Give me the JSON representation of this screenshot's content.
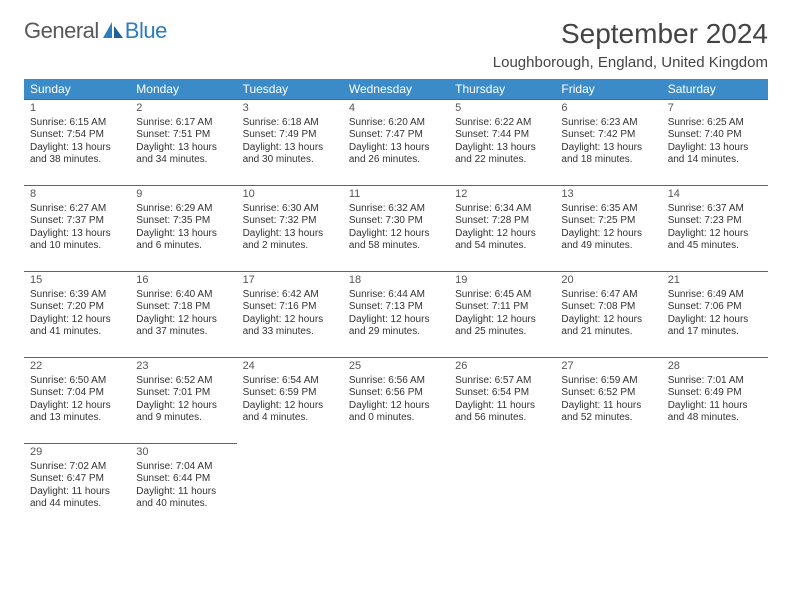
{
  "brand": {
    "word1": "General",
    "word2": "Blue"
  },
  "title": "September 2024",
  "location": "Loughborough, England, United Kingdom",
  "colors": {
    "header_bg": "#3b8bc9",
    "header_text": "#ffffff",
    "rule": "#2f6fa8",
    "brand_gray": "#57585a",
    "brand_blue": "#2f7bbf",
    "body_text": "#333333"
  },
  "weekdays": [
    "Sunday",
    "Monday",
    "Tuesday",
    "Wednesday",
    "Thursday",
    "Friday",
    "Saturday"
  ],
  "weeks": [
    [
      {
        "n": "1",
        "sr": "Sunrise: 6:15 AM",
        "ss": "Sunset: 7:54 PM",
        "d1": "Daylight: 13 hours",
        "d2": "and 38 minutes."
      },
      {
        "n": "2",
        "sr": "Sunrise: 6:17 AM",
        "ss": "Sunset: 7:51 PM",
        "d1": "Daylight: 13 hours",
        "d2": "and 34 minutes."
      },
      {
        "n": "3",
        "sr": "Sunrise: 6:18 AM",
        "ss": "Sunset: 7:49 PM",
        "d1": "Daylight: 13 hours",
        "d2": "and 30 minutes."
      },
      {
        "n": "4",
        "sr": "Sunrise: 6:20 AM",
        "ss": "Sunset: 7:47 PM",
        "d1": "Daylight: 13 hours",
        "d2": "and 26 minutes."
      },
      {
        "n": "5",
        "sr": "Sunrise: 6:22 AM",
        "ss": "Sunset: 7:44 PM",
        "d1": "Daylight: 13 hours",
        "d2": "and 22 minutes."
      },
      {
        "n": "6",
        "sr": "Sunrise: 6:23 AM",
        "ss": "Sunset: 7:42 PM",
        "d1": "Daylight: 13 hours",
        "d2": "and 18 minutes."
      },
      {
        "n": "7",
        "sr": "Sunrise: 6:25 AM",
        "ss": "Sunset: 7:40 PM",
        "d1": "Daylight: 13 hours",
        "d2": "and 14 minutes."
      }
    ],
    [
      {
        "n": "8",
        "sr": "Sunrise: 6:27 AM",
        "ss": "Sunset: 7:37 PM",
        "d1": "Daylight: 13 hours",
        "d2": "and 10 minutes."
      },
      {
        "n": "9",
        "sr": "Sunrise: 6:29 AM",
        "ss": "Sunset: 7:35 PM",
        "d1": "Daylight: 13 hours",
        "d2": "and 6 minutes."
      },
      {
        "n": "10",
        "sr": "Sunrise: 6:30 AM",
        "ss": "Sunset: 7:32 PM",
        "d1": "Daylight: 13 hours",
        "d2": "and 2 minutes."
      },
      {
        "n": "11",
        "sr": "Sunrise: 6:32 AM",
        "ss": "Sunset: 7:30 PM",
        "d1": "Daylight: 12 hours",
        "d2": "and 58 minutes."
      },
      {
        "n": "12",
        "sr": "Sunrise: 6:34 AM",
        "ss": "Sunset: 7:28 PM",
        "d1": "Daylight: 12 hours",
        "d2": "and 54 minutes."
      },
      {
        "n": "13",
        "sr": "Sunrise: 6:35 AM",
        "ss": "Sunset: 7:25 PM",
        "d1": "Daylight: 12 hours",
        "d2": "and 49 minutes."
      },
      {
        "n": "14",
        "sr": "Sunrise: 6:37 AM",
        "ss": "Sunset: 7:23 PM",
        "d1": "Daylight: 12 hours",
        "d2": "and 45 minutes."
      }
    ],
    [
      {
        "n": "15",
        "sr": "Sunrise: 6:39 AM",
        "ss": "Sunset: 7:20 PM",
        "d1": "Daylight: 12 hours",
        "d2": "and 41 minutes."
      },
      {
        "n": "16",
        "sr": "Sunrise: 6:40 AM",
        "ss": "Sunset: 7:18 PM",
        "d1": "Daylight: 12 hours",
        "d2": "and 37 minutes."
      },
      {
        "n": "17",
        "sr": "Sunrise: 6:42 AM",
        "ss": "Sunset: 7:16 PM",
        "d1": "Daylight: 12 hours",
        "d2": "and 33 minutes."
      },
      {
        "n": "18",
        "sr": "Sunrise: 6:44 AM",
        "ss": "Sunset: 7:13 PM",
        "d1": "Daylight: 12 hours",
        "d2": "and 29 minutes."
      },
      {
        "n": "19",
        "sr": "Sunrise: 6:45 AM",
        "ss": "Sunset: 7:11 PM",
        "d1": "Daylight: 12 hours",
        "d2": "and 25 minutes."
      },
      {
        "n": "20",
        "sr": "Sunrise: 6:47 AM",
        "ss": "Sunset: 7:08 PM",
        "d1": "Daylight: 12 hours",
        "d2": "and 21 minutes."
      },
      {
        "n": "21",
        "sr": "Sunrise: 6:49 AM",
        "ss": "Sunset: 7:06 PM",
        "d1": "Daylight: 12 hours",
        "d2": "and 17 minutes."
      }
    ],
    [
      {
        "n": "22",
        "sr": "Sunrise: 6:50 AM",
        "ss": "Sunset: 7:04 PM",
        "d1": "Daylight: 12 hours",
        "d2": "and 13 minutes."
      },
      {
        "n": "23",
        "sr": "Sunrise: 6:52 AM",
        "ss": "Sunset: 7:01 PM",
        "d1": "Daylight: 12 hours",
        "d2": "and 9 minutes."
      },
      {
        "n": "24",
        "sr": "Sunrise: 6:54 AM",
        "ss": "Sunset: 6:59 PM",
        "d1": "Daylight: 12 hours",
        "d2": "and 4 minutes."
      },
      {
        "n": "25",
        "sr": "Sunrise: 6:56 AM",
        "ss": "Sunset: 6:56 PM",
        "d1": "Daylight: 12 hours",
        "d2": "and 0 minutes."
      },
      {
        "n": "26",
        "sr": "Sunrise: 6:57 AM",
        "ss": "Sunset: 6:54 PM",
        "d1": "Daylight: 11 hours",
        "d2": "and 56 minutes."
      },
      {
        "n": "27",
        "sr": "Sunrise: 6:59 AM",
        "ss": "Sunset: 6:52 PM",
        "d1": "Daylight: 11 hours",
        "d2": "and 52 minutes."
      },
      {
        "n": "28",
        "sr": "Sunrise: 7:01 AM",
        "ss": "Sunset: 6:49 PM",
        "d1": "Daylight: 11 hours",
        "d2": "and 48 minutes."
      }
    ],
    [
      {
        "n": "29",
        "sr": "Sunrise: 7:02 AM",
        "ss": "Sunset: 6:47 PM",
        "d1": "Daylight: 11 hours",
        "d2": "and 44 minutes."
      },
      {
        "n": "30",
        "sr": "Sunrise: 7:04 AM",
        "ss": "Sunset: 6:44 PM",
        "d1": "Daylight: 11 hours",
        "d2": "and 40 minutes."
      },
      null,
      null,
      null,
      null,
      null
    ]
  ]
}
